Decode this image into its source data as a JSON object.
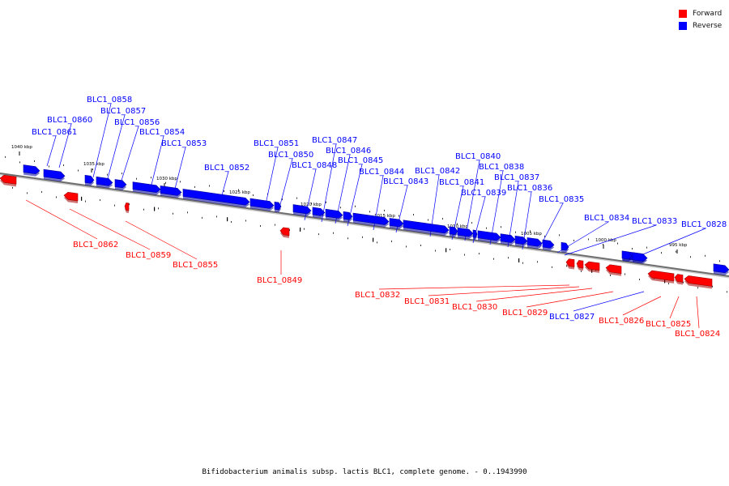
{
  "colors": {
    "forward": "#ff0000",
    "reverse": "#0000ff",
    "backbone": "#808080"
  },
  "legend": {
    "forward_label": "Forward",
    "reverse_label": "Reverse"
  },
  "caption": "Bifidobacterium animalis subsp. lactis BLC1, complete genome. - 0..1943990",
  "scale_labels": [
    "1040 kbp",
    "1035 kbp",
    "1030 kbp",
    "1025 kbp",
    "1020 kbp",
    "1015 kbp",
    "1010 kbp",
    "1005 kbp",
    "1000 kbp",
    "995 kbp"
  ],
  "genes": [
    {
      "name": "BLC1_0862",
      "strand": "forward"
    },
    {
      "name": "BLC1_0861",
      "strand": "reverse"
    },
    {
      "name": "BLC1_0860",
      "strand": "reverse"
    },
    {
      "name": "BLC1_0859",
      "strand": "forward"
    },
    {
      "name": "BLC1_0858",
      "strand": "reverse"
    },
    {
      "name": "BLC1_0857",
      "strand": "reverse"
    },
    {
      "name": "BLC1_0856",
      "strand": "reverse"
    },
    {
      "name": "BLC1_0855",
      "strand": "forward"
    },
    {
      "name": "BLC1_0854",
      "strand": "reverse"
    },
    {
      "name": "BLC1_0853",
      "strand": "reverse"
    },
    {
      "name": "BLC1_0852",
      "strand": "reverse"
    },
    {
      "name": "BLC1_0851",
      "strand": "reverse"
    },
    {
      "name": "BLC1_0850",
      "strand": "reverse"
    },
    {
      "name": "BLC1_0849",
      "strand": "forward"
    },
    {
      "name": "BLC1_0848",
      "strand": "reverse"
    },
    {
      "name": "BLC1_0847",
      "strand": "reverse"
    },
    {
      "name": "BLC1_0846",
      "strand": "reverse"
    },
    {
      "name": "BLC1_0845",
      "strand": "reverse"
    },
    {
      "name": "BLC1_0844",
      "strand": "reverse"
    },
    {
      "name": "BLC1_0843",
      "strand": "reverse"
    },
    {
      "name": "BLC1_0842",
      "strand": "reverse"
    },
    {
      "name": "BLC1_0841",
      "strand": "reverse"
    },
    {
      "name": "BLC1_0840",
      "strand": "reverse"
    },
    {
      "name": "BLC1_0839",
      "strand": "reverse"
    },
    {
      "name": "BLC1_0838",
      "strand": "reverse"
    },
    {
      "name": "BLC1_0837",
      "strand": "reverse"
    },
    {
      "name": "BLC1_0836",
      "strand": "reverse"
    },
    {
      "name": "BLC1_0835",
      "strand": "reverse"
    },
    {
      "name": "BLC1_0834",
      "strand": "reverse"
    },
    {
      "name": "BLC1_0833",
      "strand": "reverse"
    },
    {
      "name": "BLC1_0832",
      "strand": "forward"
    },
    {
      "name": "BLC1_0831",
      "strand": "forward"
    },
    {
      "name": "BLC1_0830",
      "strand": "forward"
    },
    {
      "name": "BLC1_0829",
      "strand": "forward"
    },
    {
      "name": "BLC1_0828",
      "strand": "reverse"
    },
    {
      "name": "BLC1_0827",
      "strand": "reverse"
    },
    {
      "name": "BLC1_0826",
      "strand": "forward"
    },
    {
      "name": "BLC1_0825",
      "strand": "forward"
    },
    {
      "name": "BLC1_0824",
      "strand": "forward"
    }
  ]
}
